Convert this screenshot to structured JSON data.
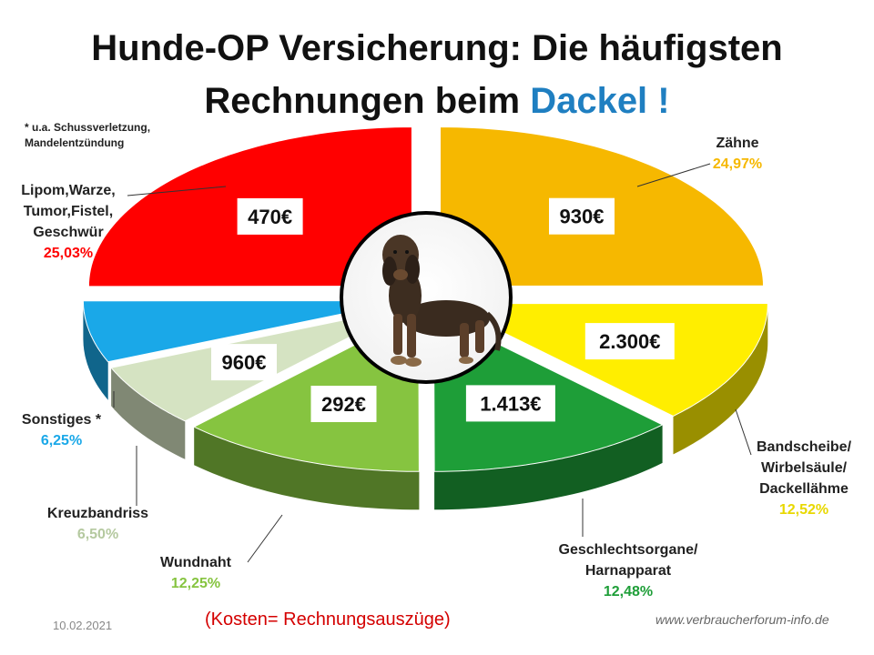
{
  "title": {
    "line1": "Hunde-OP Versicherung: Die häufigsten",
    "line2_prefix": "Rechnungen beim ",
    "line2_accent": "Dackel !"
  },
  "note": {
    "line1": "* u.a. Schussverletzung,",
    "line2": "Mandelentzündung"
  },
  "chart_data": {
    "type": "pie",
    "style": "3d-exploded-donut",
    "center_image": "dachshund-photo",
    "slices": [
      {
        "label_lines": [
          "Zähne"
        ],
        "percent": 24.97,
        "percent_text": "24,97%",
        "cost": "930€",
        "color": "#f6b800"
      },
      {
        "label_lines": [
          "Bandscheibe/",
          "Wirbelsäule/",
          "Dackellähme"
        ],
        "percent": 12.52,
        "percent_text": "12,52%",
        "cost": "2.300€",
        "color": "#ffee00"
      },
      {
        "label_lines": [
          "Geschlechtsorgane/",
          "Harnapparat"
        ],
        "percent": 12.48,
        "percent_text": "12,48%",
        "cost": "1.413€",
        "color": "#1e9e38"
      },
      {
        "label_lines": [
          "Wundnaht"
        ],
        "percent": 12.25,
        "percent_text": "12,25%",
        "cost": "292€",
        "color": "#86c440"
      },
      {
        "label_lines": [
          "Kreuzbandriss"
        ],
        "percent": 6.5,
        "percent_text": "6,50%",
        "cost": "960€",
        "color": "#d5e3c2"
      },
      {
        "label_lines": [
          "Sonstiges *"
        ],
        "percent": 6.25,
        "percent_text": "6,25%",
        "cost": "",
        "color": "#1aa8e8"
      },
      {
        "label_lines": [
          "Lipom,Warze,",
          "Tumor,Fistel,",
          "Geschwür"
        ],
        "percent": 25.03,
        "percent_text": "25,03%",
        "cost": "470€",
        "color": "#ff0000"
      }
    ],
    "percent_label_colors": [
      "#f6b800",
      "#e8d800",
      "#1e9e38",
      "#86c440",
      "#b5c9a0",
      "#1aa8e8",
      "#ff0000"
    ]
  },
  "footer": {
    "date": "10.02.2021",
    "note": "(Kosten= Rechnungsauszüge)",
    "url": "www.verbraucherforum-info.de"
  }
}
